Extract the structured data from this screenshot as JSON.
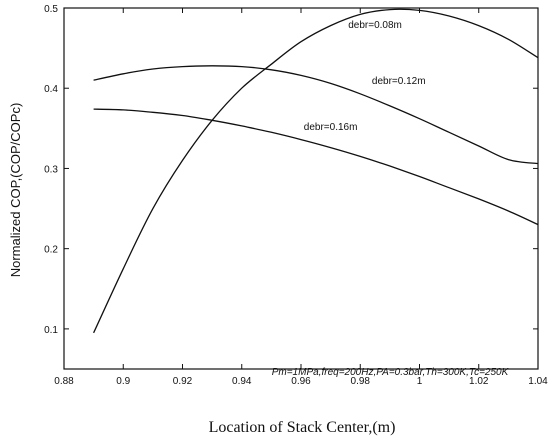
{
  "chart_data": {
    "type": "line",
    "xlabel": "Location of Stack Center,(m)",
    "ylabel": "Normalized COP,(COP/COPc)",
    "xlim": [
      0.88,
      1.04
    ],
    "ylim": [
      0.05,
      0.5
    ],
    "x_ticks": [
      "0.88",
      "0.9",
      "0.92",
      "0.94",
      "0.96",
      "0.98",
      "1",
      "1.02",
      "1.04"
    ],
    "y_ticks": [
      "0.1",
      "0.2",
      "0.3",
      "0.4",
      "0.5"
    ],
    "annotation": "Pm=1MPa,freq=200Hz,PA=0.3bar,Th=300K,Tc=250K",
    "grid": false,
    "series": [
      {
        "name": "debr=0.08m",
        "x": [
          0.89,
          0.9,
          0.91,
          0.92,
          0.93,
          0.94,
          0.95,
          0.96,
          0.97,
          0.98,
          0.99,
          1.0,
          1.01,
          1.02,
          1.03,
          1.04
        ],
        "y": [
          0.095,
          0.175,
          0.25,
          0.31,
          0.36,
          0.4,
          0.43,
          0.458,
          0.478,
          0.492,
          0.498,
          0.497,
          0.49,
          0.478,
          0.461,
          0.438
        ]
      },
      {
        "name": "debr=0.12m",
        "x": [
          0.89,
          0.9,
          0.91,
          0.92,
          0.93,
          0.94,
          0.95,
          0.96,
          0.97,
          0.98,
          0.99,
          1.0,
          1.01,
          1.02,
          1.03,
          1.04
        ],
        "y": [
          0.41,
          0.418,
          0.424,
          0.427,
          0.428,
          0.427,
          0.423,
          0.416,
          0.406,
          0.393,
          0.378,
          0.362,
          0.345,
          0.328,
          0.311,
          0.306
        ]
      },
      {
        "name": "debr=0.16m",
        "x": [
          0.89,
          0.9,
          0.91,
          0.92,
          0.93,
          0.94,
          0.95,
          0.96,
          0.97,
          0.98,
          0.99,
          1.0,
          1.01,
          1.02,
          1.03,
          1.04
        ],
        "y": [
          0.374,
          0.373,
          0.37,
          0.366,
          0.36,
          0.353,
          0.345,
          0.336,
          0.326,
          0.315,
          0.303,
          0.29,
          0.276,
          0.262,
          0.247,
          0.23
        ]
      }
    ],
    "series_labels": [
      {
        "text": "debr=0.08m",
        "x": 0.985,
        "y": 0.475
      },
      {
        "text": "debr=0.12m",
        "x": 0.993,
        "y": 0.405
      },
      {
        "text": "debr=0.16m",
        "x": 0.97,
        "y": 0.348
      }
    ]
  }
}
